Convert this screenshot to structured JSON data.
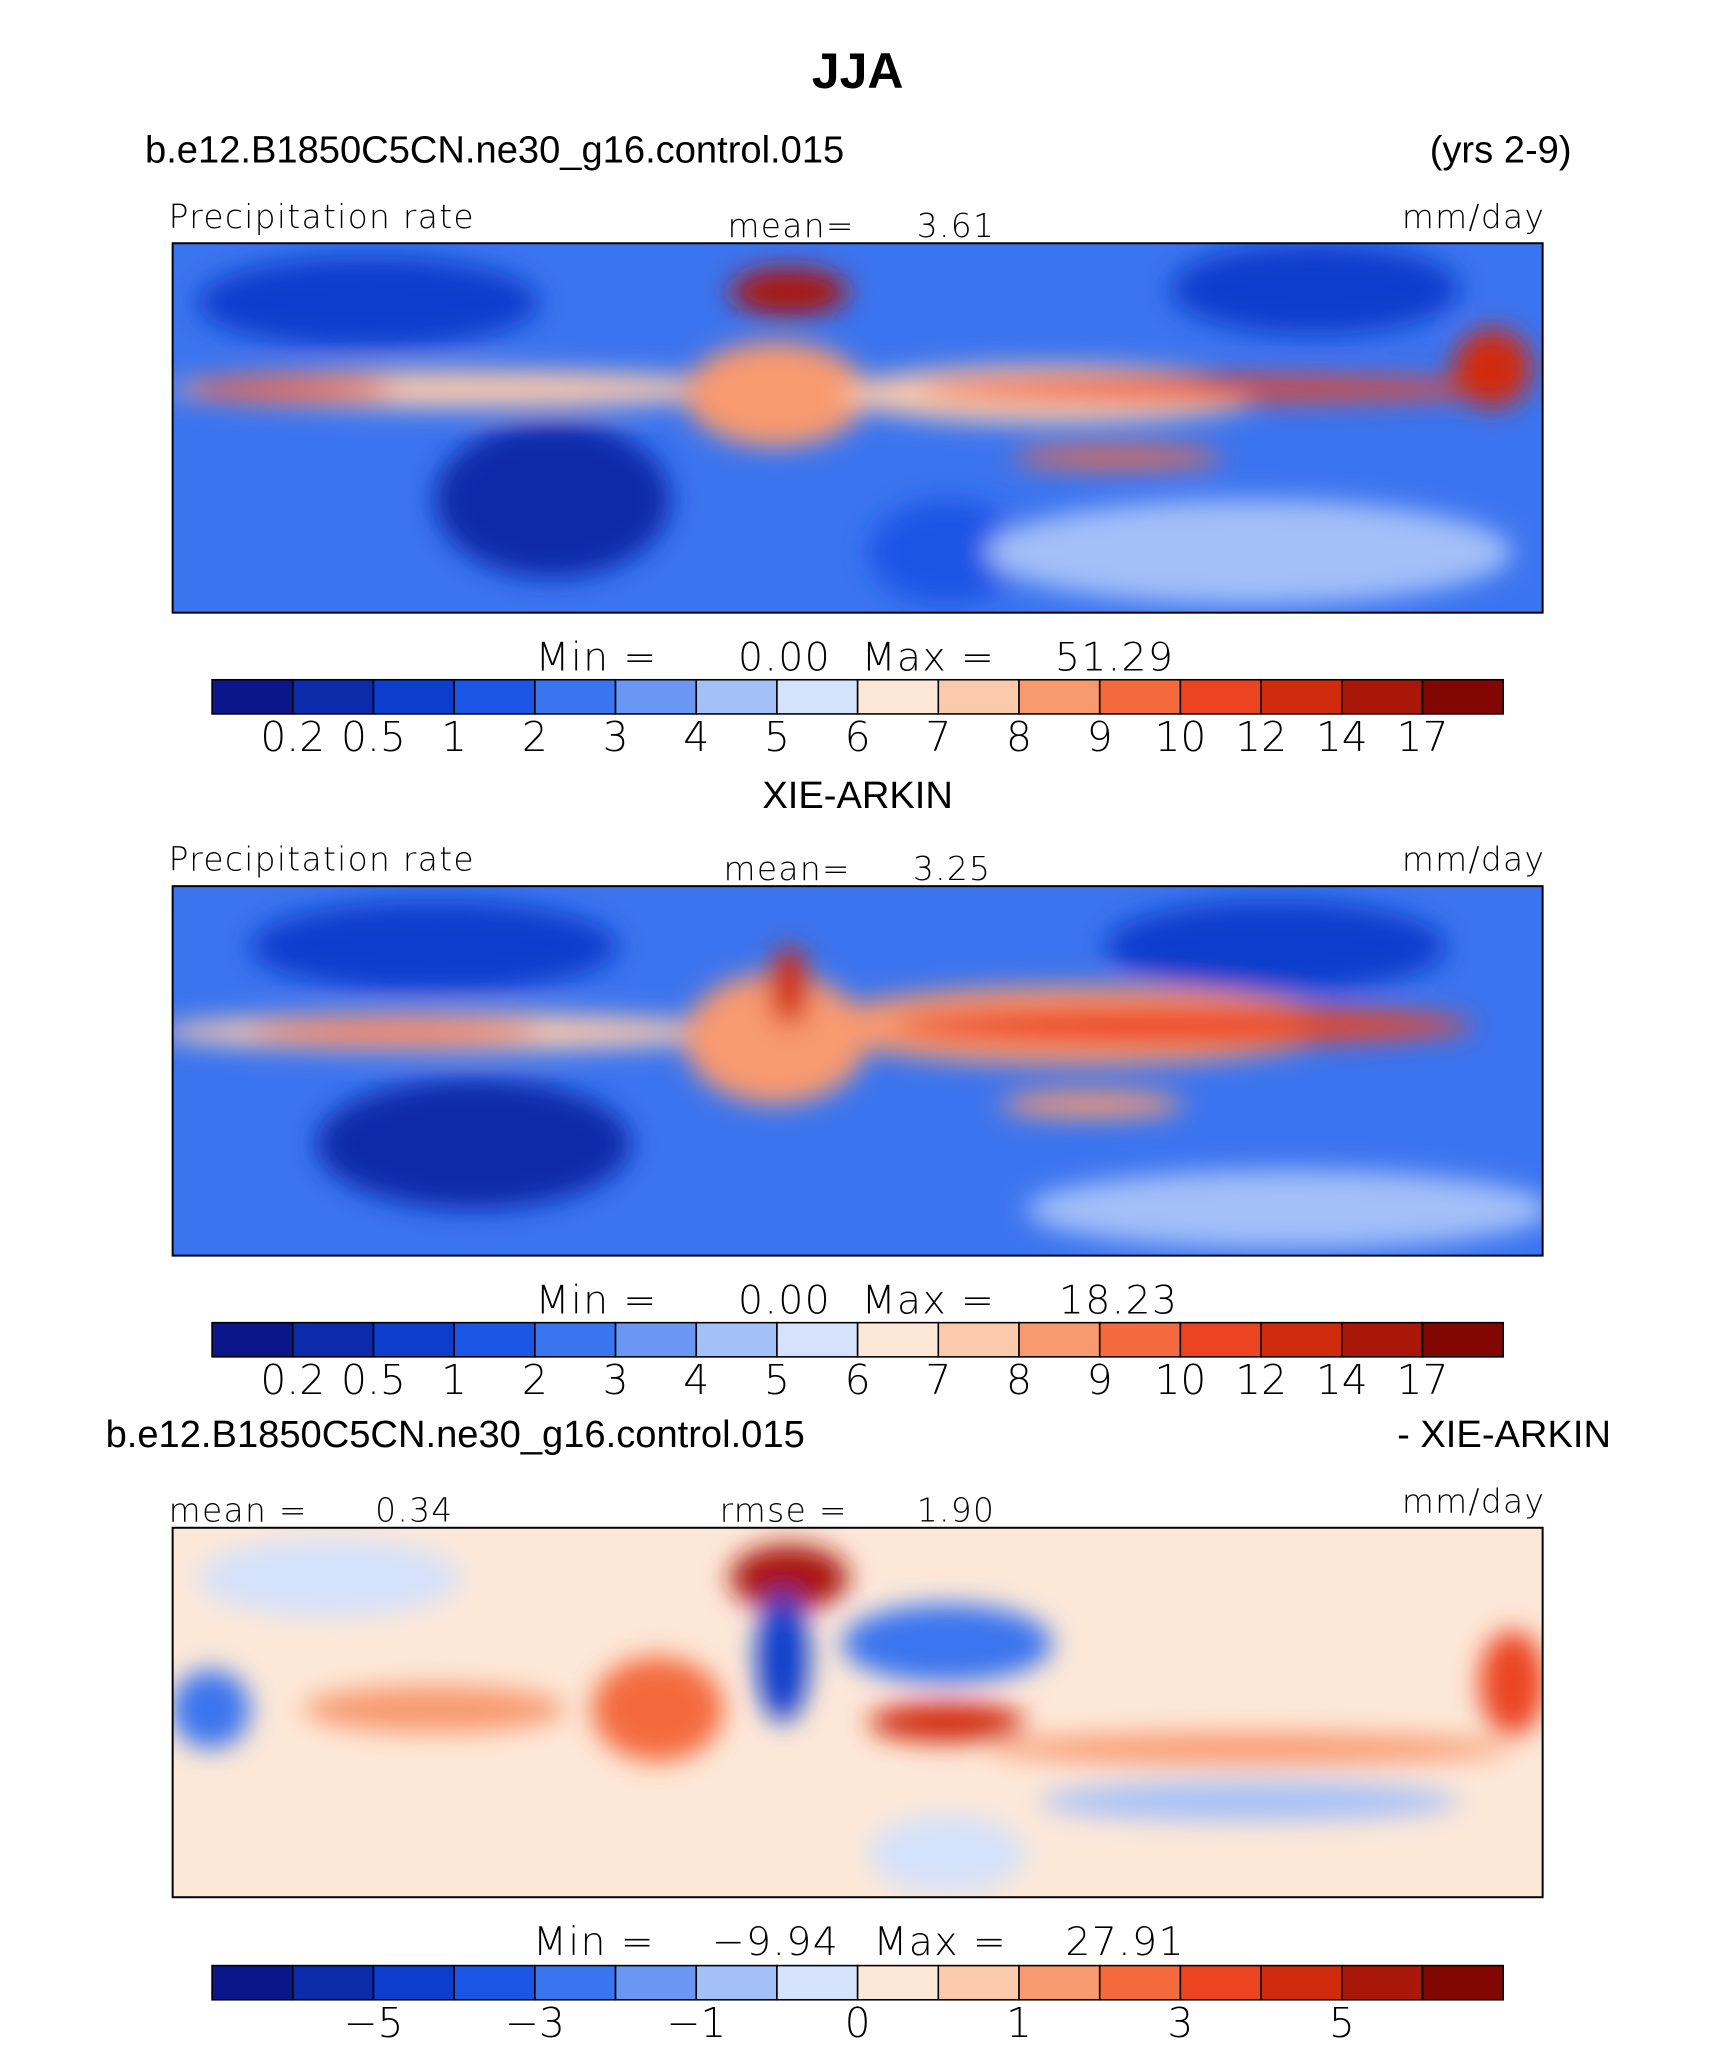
{
  "title": "JJA",
  "panels": [
    {
      "case": "b.e12.B1850C5CN.ne30_g16.control.015",
      "years": "(yrs 2-9)",
      "left_label": "Precipitation rate",
      "center_label": "mean=",
      "center_value": "3.61",
      "units": "mm/day",
      "min_label": "Min =",
      "min": "0.00",
      "max_label": "Max =",
      "max": "51.29",
      "colorbar": {
        "labels": [
          "0.2",
          "0.5",
          "1",
          "2",
          "3",
          "4",
          "5",
          "6",
          "7",
          "8",
          "9",
          "10",
          "12",
          "14",
          "17"
        ],
        "colors": [
          "#0a168a",
          "#0b2bab",
          "#0d3dcc",
          "#1a55e6",
          "#3b74ef",
          "#6b97f4",
          "#a4c0f8",
          "#d4e2fb",
          "#fde8d8",
          "#fbc9ab",
          "#f89a6f",
          "#f46a3d",
          "#ec4420",
          "#d12b0d",
          "#a91708",
          "#820601"
        ]
      }
    },
    {
      "case": "XIE-ARKIN",
      "left_label": "Precipitation rate",
      "center_label": "mean=",
      "center_value": "3.25",
      "units": "mm/day",
      "min_label": "Min =",
      "min": "0.00",
      "max_label": "Max =",
      "max": "18.23",
      "colorbar": {
        "labels": [
          "0.2",
          "0.5",
          "1",
          "2",
          "3",
          "4",
          "5",
          "6",
          "7",
          "8",
          "9",
          "10",
          "12",
          "14",
          "17"
        ],
        "colors": [
          "#0a168a",
          "#0b2bab",
          "#0d3dcc",
          "#1a55e6",
          "#3b74ef",
          "#6b97f4",
          "#a4c0f8",
          "#d4e2fb",
          "#fde8d8",
          "#fbc9ab",
          "#f89a6f",
          "#f46a3d",
          "#ec4420",
          "#d12b0d",
          "#a91708",
          "#820601"
        ]
      }
    },
    {
      "case": "b.e12.B1850C5CN.ne30_g16.control.015",
      "case_right": "- XIE-ARKIN",
      "left_label": "mean =",
      "left_value": "0.34",
      "center_label": "rmse =",
      "center_value": "1.90",
      "units": "mm/day",
      "min_label": "Min =",
      "min": "−9.94",
      "max_label": "Max =",
      "max": "27.91",
      "colorbar": {
        "labels": [
          null,
          "−5",
          null,
          "−3",
          null,
          "−1",
          null,
          "0",
          null,
          "1",
          null,
          "3",
          null,
          "5",
          null
        ],
        "colors": [
          "#0a168a",
          "#0b2bab",
          "#0d3dcc",
          "#1a55e6",
          "#3b74ef",
          "#6b97f4",
          "#a4c0f8",
          "#d4e2fb",
          "#fde8d8",
          "#fbc9ab",
          "#f89a6f",
          "#f46a3d",
          "#ec4420",
          "#d12b0d",
          "#a91708",
          "#820601"
        ]
      }
    }
  ]
}
